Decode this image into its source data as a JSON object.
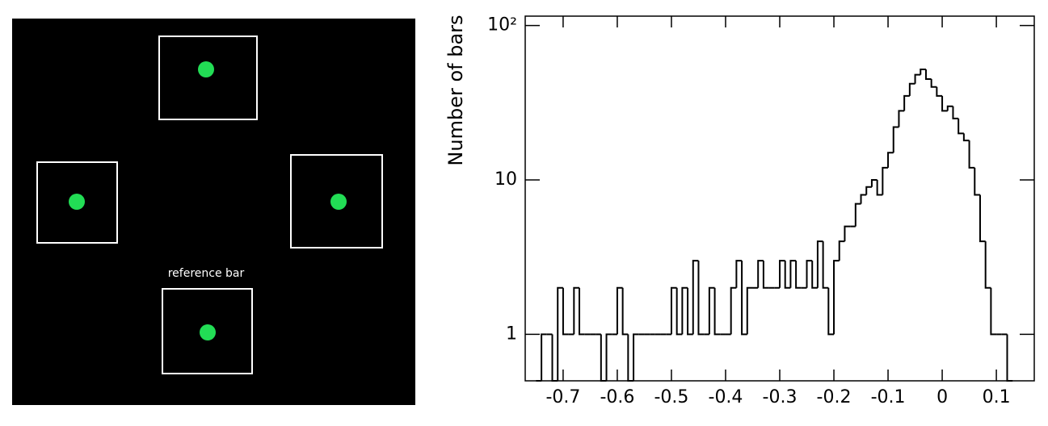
{
  "left_panel": {
    "label": "reference bar"
  },
  "chart_data": {
    "type": "histogram",
    "ylabel": "Number of bars",
    "color": "#000000",
    "log_y": true,
    "bins": [
      -0.75,
      -0.74,
      -0.73,
      -0.72,
      -0.71,
      -0.7,
      -0.69,
      -0.68,
      -0.67,
      -0.66,
      -0.65,
      -0.64,
      -0.63,
      -0.62,
      -0.61,
      -0.6,
      -0.59,
      -0.58,
      -0.57,
      -0.56,
      -0.55,
      -0.54,
      -0.53,
      -0.52,
      -0.51,
      -0.5,
      -0.49,
      -0.48,
      -0.47,
      -0.46,
      -0.45,
      -0.44,
      -0.43,
      -0.42,
      -0.41,
      -0.4,
      -0.39,
      -0.38,
      -0.37,
      -0.36,
      -0.35,
      -0.34,
      -0.33,
      -0.32,
      -0.31,
      -0.3,
      -0.29,
      -0.28,
      -0.27,
      -0.26,
      -0.25,
      -0.24,
      -0.23,
      -0.22,
      -0.21,
      -0.2,
      -0.19,
      -0.18,
      -0.17,
      -0.16,
      -0.15,
      -0.14,
      -0.13,
      -0.12,
      -0.11,
      -0.1,
      -0.09,
      -0.08,
      -0.07,
      -0.06,
      -0.05,
      -0.04,
      -0.03,
      -0.02,
      -0.01,
      0,
      0.01,
      0.02,
      0.03,
      0.04,
      0.05,
      0.06,
      0.07,
      0.08,
      0.09,
      0.1,
      0.11,
      0.12,
      0.13
    ],
    "values": [
      0,
      1,
      1,
      0,
      2,
      1,
      1,
      2,
      1,
      1,
      1,
      1,
      0,
      1,
      1,
      2,
      1,
      0,
      1,
      1,
      1,
      1,
      1,
      1,
      1,
      2,
      1,
      2,
      1,
      3,
      1,
      1,
      2,
      1,
      1,
      1,
      2,
      3,
      1,
      2,
      2,
      3,
      2,
      2,
      2,
      3,
      2,
      3,
      2,
      2,
      3,
      2,
      4,
      2,
      1,
      3,
      4,
      5,
      5,
      7,
      8,
      9,
      10,
      8,
      12,
      15,
      22,
      28,
      35,
      42,
      48,
      52,
      45,
      40,
      35,
      28,
      30,
      25,
      20,
      18,
      12,
      8,
      4,
      2,
      1,
      1,
      1,
      0
    ],
    "xlim": [
      -0.77,
      0.17
    ],
    "xticks": [
      -0.7,
      -0.6,
      -0.5,
      -0.4,
      -0.3,
      -0.2,
      -0.1,
      0,
      0.1
    ],
    "ylim": [
      0.5,
      115
    ],
    "yticks": [
      1,
      10,
      {
        "value": 100,
        "label": "10²"
      }
    ]
  }
}
